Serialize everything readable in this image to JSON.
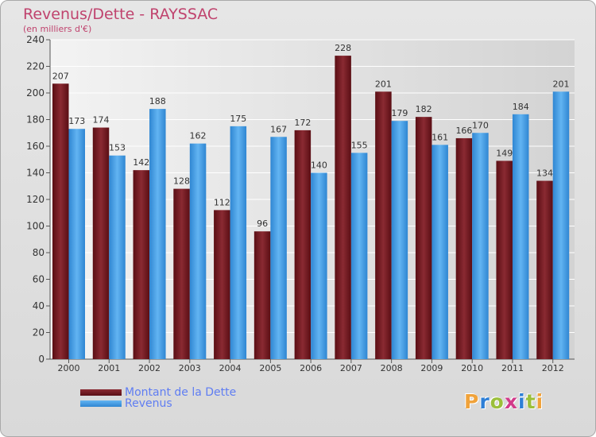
{
  "title": "Revenus/Dette - RAYSSAC",
  "subtitle": "(en milliers d'€)",
  "logo": {
    "letters": [
      "P",
      "r",
      "o",
      "x",
      "i",
      "t",
      "i"
    ],
    "colors": [
      "#f0a23a",
      "#2e7fd6",
      "#9bbf3a",
      "#d23b8a",
      "#2e7fd6",
      "#9bbf3a",
      "#f0a23a"
    ]
  },
  "chart_data": {
    "type": "bar",
    "categories": [
      "2000",
      "2001",
      "2002",
      "2003",
      "2004",
      "2005",
      "2006",
      "2007",
      "2008",
      "2009",
      "2010",
      "2011",
      "2012"
    ],
    "series": [
      {
        "name": "Montant de la Dette",
        "values": [
          207,
          174,
          142,
          128,
          112,
          96,
          172,
          228,
          201,
          182,
          166,
          149,
          134
        ],
        "color": "#7a1a22"
      },
      {
        "name": "Revenus",
        "values": [
          173,
          153,
          188,
          162,
          175,
          167,
          140,
          155,
          179,
          161,
          170,
          184,
          201
        ],
        "color": "#4aa3ea"
      }
    ],
    "ylim": [
      0,
      240
    ],
    "yticks": [
      0,
      20,
      40,
      60,
      80,
      100,
      120,
      140,
      160,
      180,
      200,
      220,
      240
    ],
    "grid": true,
    "legend": "bottom-left"
  }
}
